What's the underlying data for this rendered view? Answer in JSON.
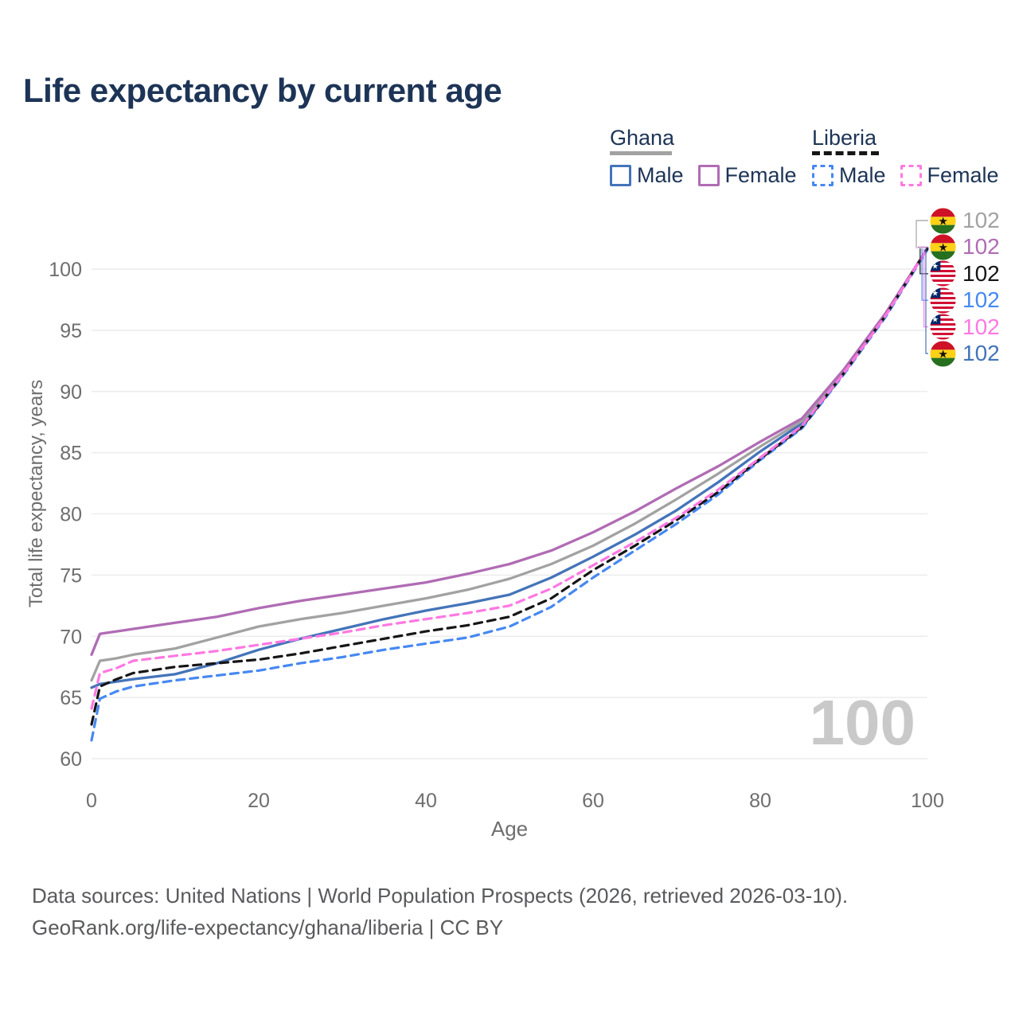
{
  "page": {
    "title": "Life expectancy by current age"
  },
  "legend": {
    "groups": [
      {
        "label": "Ghana",
        "line_style": "solid",
        "underline_color": "#a2a2a2",
        "items": [
          {
            "label": "Male",
            "color": "#4474b9"
          },
          {
            "label": "Female",
            "color": "#b06cb4"
          }
        ]
      },
      {
        "label": "Liberia",
        "line_style": "dashed",
        "underline_color": "#161616",
        "items": [
          {
            "label": "Male",
            "color": "#4688f1"
          },
          {
            "label": "Female",
            "color": "#ff78e2"
          }
        ]
      }
    ]
  },
  "chart_data": {
    "type": "line",
    "title": "Life expectancy by current age",
    "xlabel": "Age",
    "ylabel": "Total life expectancy, years",
    "x_ticks": [
      0,
      20,
      40,
      60,
      80,
      100
    ],
    "y_ticks": [
      60,
      65,
      70,
      75,
      80,
      85,
      90,
      95,
      100
    ],
    "xlim": [
      0,
      100
    ],
    "ylim": [
      60,
      102.5
    ],
    "grid": "horizontal-only",
    "legend_position": "top-right",
    "watermark": "100",
    "x": [
      0,
      1,
      2,
      3,
      5,
      10,
      15,
      20,
      25,
      30,
      35,
      40,
      45,
      50,
      55,
      60,
      65,
      70,
      75,
      80,
      85,
      90,
      95,
      100
    ],
    "series": [
      {
        "name": "Ghana Male",
        "country": "Ghana",
        "sex": "Male",
        "color": "#4474b9",
        "dash": false,
        "values": [
          65.8,
          66.1,
          66.2,
          66.3,
          66.5,
          66.9,
          67.8,
          68.9,
          69.8,
          70.6,
          71.4,
          72.1,
          72.7,
          73.4,
          74.8,
          76.5,
          78.3,
          80.3,
          82.6,
          85.1,
          87.4,
          91.6,
          96.3,
          101.7
        ]
      },
      {
        "name": "Ghana Both sexes",
        "country": "Ghana",
        "sex": "Both",
        "color": "#a2a2a2",
        "dash": false,
        "values": [
          66.4,
          68.0,
          68.1,
          68.2,
          68.5,
          69.0,
          69.9,
          70.8,
          71.4,
          71.9,
          72.5,
          73.1,
          73.8,
          74.7,
          75.9,
          77.4,
          79.2,
          81.2,
          83.3,
          85.5,
          87.6,
          91.7,
          96.3,
          101.7
        ]
      },
      {
        "name": "Ghana Female",
        "country": "Ghana",
        "sex": "Female",
        "color": "#b06cb4",
        "dash": false,
        "values": [
          68.5,
          70.2,
          70.3,
          70.4,
          70.6,
          71.1,
          71.6,
          72.3,
          72.9,
          73.4,
          73.9,
          74.4,
          75.1,
          75.9,
          77.0,
          78.5,
          80.2,
          82.1,
          83.9,
          85.9,
          87.8,
          91.8,
          96.4,
          101.7
        ]
      },
      {
        "name": "Liberia Male",
        "country": "Liberia",
        "sex": "Male",
        "color": "#4688f1",
        "dash": true,
        "values": [
          61.5,
          64.9,
          65.2,
          65.5,
          65.9,
          66.4,
          66.8,
          67.2,
          67.8,
          68.3,
          68.9,
          69.4,
          69.9,
          70.8,
          72.4,
          74.8,
          77.0,
          79.2,
          81.6,
          84.4,
          87.0,
          91.4,
          96.1,
          101.6
        ]
      },
      {
        "name": "Liberia Both sexes",
        "country": "Liberia",
        "sex": "Both",
        "color": "#161616",
        "dash": true,
        "values": [
          62.8,
          65.9,
          66.2,
          66.5,
          67.0,
          67.5,
          67.8,
          68.1,
          68.6,
          69.2,
          69.8,
          70.4,
          70.9,
          71.6,
          73.1,
          75.4,
          77.4,
          79.5,
          81.8,
          84.5,
          87.1,
          91.5,
          96.2,
          101.7
        ]
      },
      {
        "name": "Liberia Female",
        "country": "Liberia",
        "sex": "Female",
        "color": "#ff78e2",
        "dash": true,
        "values": [
          64.1,
          67.0,
          67.2,
          67.4,
          68.0,
          68.4,
          68.8,
          69.3,
          69.8,
          70.3,
          70.9,
          71.4,
          71.9,
          72.5,
          73.9,
          75.8,
          77.7,
          79.7,
          82.0,
          84.6,
          87.2,
          91.5,
          96.2,
          101.7
        ]
      }
    ],
    "end_labels": [
      {
        "flag": "ghana",
        "value": "102",
        "color": "#a2a2a2"
      },
      {
        "flag": "ghana",
        "value": "102",
        "color": "#b06cb4"
      },
      {
        "flag": "liberia",
        "value": "102",
        "color": "#161616"
      },
      {
        "flag": "liberia",
        "value": "102",
        "color": "#4688f1"
      },
      {
        "flag": "liberia",
        "value": "102",
        "color": "#ff78e2"
      },
      {
        "flag": "ghana",
        "value": "102",
        "color": "#4474b9"
      }
    ]
  },
  "footer": {
    "line1": "Data sources: United Nations | World Population Prospects (2026, retrieved 2026-03-10).",
    "line2": "GeoRank.org/life-expectancy/ghana/liberia | CC BY"
  }
}
